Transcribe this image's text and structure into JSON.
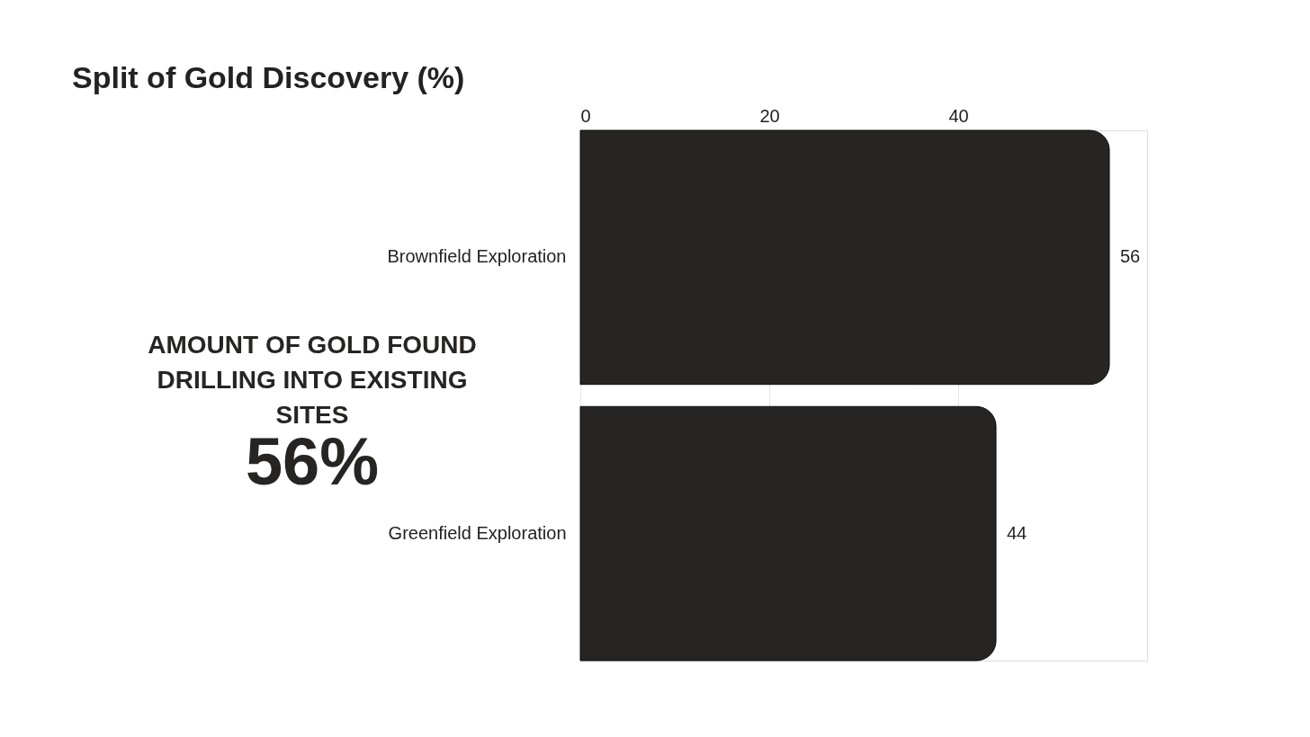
{
  "chart_data": {
    "type": "bar",
    "orientation": "horizontal",
    "title": "Split of Gold Discovery (%)",
    "categories": [
      "Brownfield Exploration",
      "Greenfield Exploration"
    ],
    "values": [
      56,
      44
    ],
    "color": "#262523",
    "xlim": [
      0,
      60
    ],
    "xticks": [
      0,
      20,
      40
    ],
    "grid": "x",
    "data_labels": true,
    "annotations": [
      "AMOUNT OF GOLD FOUND DRILLING INTO EXISTING SITES",
      "56%"
    ]
  }
}
